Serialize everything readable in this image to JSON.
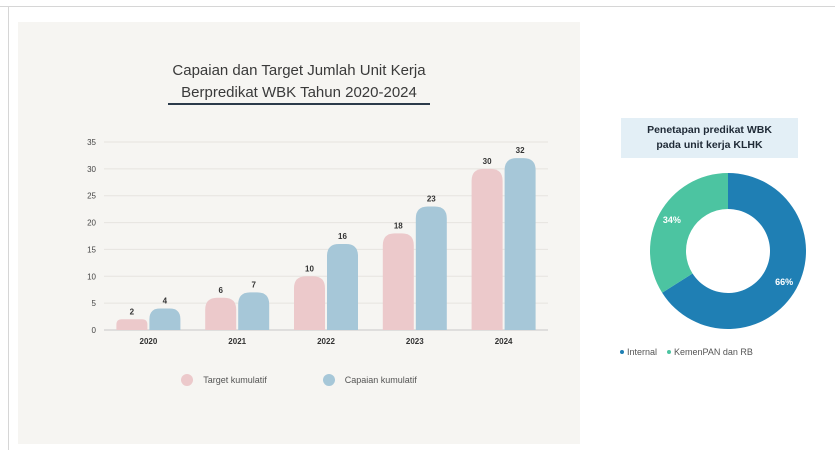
{
  "chart_data": [
    {
      "type": "bar",
      "title": "Capaian dan Target Jumlah Unit Kerja Berpredikat WBK Tahun 2020-2024",
      "title_lines": [
        "Capaian dan Target Jumlah Unit Kerja",
        "Berpredikat WBK Tahun 2020-2024"
      ],
      "categories": [
        "2020",
        "2021",
        "2022",
        "2023",
        "2024"
      ],
      "series": [
        {
          "name": "Target kumulatif",
          "values": [
            2,
            6,
            10,
            18,
            30
          ],
          "color": "#ecc9cb"
        },
        {
          "name": "Capaian kumulatif",
          "values": [
            4,
            7,
            16,
            23,
            32
          ],
          "color": "#a6c7d8"
        }
      ],
      "yticks": [
        0,
        5,
        10,
        15,
        20,
        25,
        30,
        35
      ],
      "ylim": [
        0,
        35
      ],
      "grid": true,
      "legend": "bottom",
      "xlabel": "",
      "ylabel": ""
    },
    {
      "type": "pie",
      "title": "Penetapan predikat WBK pada unit kerja KLHK",
      "title_lines": [
        "Penetapan predikat WBK",
        "pada unit kerja KLHK"
      ],
      "labels": [
        "Internal",
        "KemenPAN dan RB"
      ],
      "values": [
        66,
        34
      ],
      "value_labels": [
        "66%",
        "34%"
      ],
      "colors": [
        "#1f7fb4",
        "#4cc4a1"
      ],
      "donut": true,
      "legend": "bottom"
    }
  ]
}
